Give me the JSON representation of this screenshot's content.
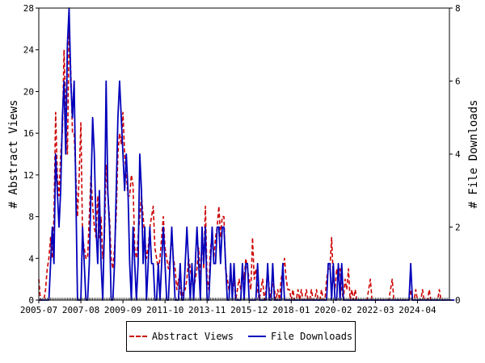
{
  "chart_data": {
    "type": "line",
    "x_tick_labels": [
      "2005-07",
      "2007-08",
      "2009-09",
      "2011-10",
      "2013-11",
      "2015-12",
      "2018-01",
      "2020-02",
      "2022-03",
      "2024-04"
    ],
    "y_left": {
      "label": "# Abstract Views",
      "ticks": [
        0,
        4,
        8,
        12,
        16,
        20,
        24,
        28
      ],
      "ylim": [
        0,
        28
      ]
    },
    "y_right": {
      "label": "# File Downloads",
      "ticks": [
        0,
        2,
        4,
        6,
        8
      ],
      "ylim": [
        0,
        8
      ]
    },
    "x_range": [
      "2005-07",
      "2025-11"
    ],
    "grid": false,
    "legend_position": "bottom",
    "series": [
      {
        "name": "Abstract Views",
        "axis": "left",
        "color": "#cc0000",
        "style": "dashed",
        "x_start": "2005-07",
        "step": "month",
        "values": [
          2,
          0,
          0,
          0,
          1,
          3,
          4,
          6,
          4,
          8,
          18,
          12,
          10,
          14,
          16,
          24,
          18,
          14,
          26,
          22,
          16,
          16,
          12,
          8,
          12,
          17,
          6,
          5,
          4,
          4,
          8,
          12,
          9,
          7,
          6,
          10,
          6,
          8,
          4,
          6,
          13,
          10,
          8,
          4,
          3,
          5,
          8,
          14,
          16,
          15,
          18,
          14,
          12,
          10,
          10,
          12,
          11,
          5,
          4,
          6,
          8,
          10,
          8,
          6,
          4,
          5,
          7,
          8,
          9,
          5,
          4,
          3,
          4,
          6,
          8,
          5,
          4,
          3,
          4,
          6,
          4,
          3,
          1,
          2,
          1,
          0,
          1,
          1,
          2,
          4,
          3,
          2,
          1,
          2,
          3,
          5,
          2,
          6,
          3,
          9,
          2,
          1,
          5,
          6,
          4,
          6,
          7,
          9,
          6,
          8,
          8,
          3,
          2,
          1,
          2,
          1,
          2,
          0,
          1,
          2,
          1,
          3,
          2,
          4,
          3,
          2,
          1,
          6,
          2,
          3,
          1,
          0,
          1,
          2,
          0,
          1,
          3,
          1,
          0,
          2,
          1,
          0,
          1,
          0,
          2,
          3,
          4,
          2,
          1,
          1,
          0,
          1,
          0,
          0,
          1,
          0,
          1,
          0,
          0,
          1,
          0,
          0,
          1,
          0,
          0,
          1,
          0,
          0,
          1,
          0,
          0,
          2,
          3,
          3,
          6,
          2,
          1,
          3,
          2,
          3,
          1,
          0,
          2,
          1,
          3,
          0,
          1,
          0,
          1,
          0,
          0,
          0,
          0,
          0,
          0,
          0,
          1,
          2,
          0,
          0,
          0,
          0,
          0,
          0,
          0,
          0,
          0,
          0,
          0,
          1,
          2,
          0,
          0,
          0,
          0,
          0,
          0,
          0,
          0,
          0,
          0,
          1,
          0,
          0,
          1,
          0,
          0,
          0,
          1,
          0,
          0,
          0,
          1,
          0,
          0,
          0,
          0,
          0,
          1,
          0,
          0,
          0
        ]
      },
      {
        "name": "File Downloads",
        "axis": "right",
        "color": "#0000bb",
        "style": "solid",
        "x_start": "2005-07",
        "step": "month",
        "values": [
          0,
          0,
          0,
          0,
          0,
          0,
          0,
          1,
          2,
          1,
          4,
          3,
          2,
          3,
          5,
          6,
          4,
          7,
          8,
          6,
          5,
          6,
          3,
          0,
          0,
          0,
          2,
          1,
          0,
          0,
          1,
          3,
          5,
          4,
          2,
          1,
          3,
          1,
          0,
          2,
          6,
          3,
          2,
          0,
          0,
          1,
          3,
          5,
          6,
          5,
          4,
          3,
          4,
          3,
          1,
          0,
          2,
          1,
          0,
          1,
          4,
          3,
          1,
          2,
          0,
          1,
          2,
          1,
          1,
          0,
          0,
          1,
          0,
          1,
          2,
          1,
          0,
          0,
          1,
          2,
          1,
          0,
          0,
          0,
          1,
          0,
          0,
          1,
          2,
          1,
          0,
          1,
          0,
          1,
          2,
          1,
          0,
          2,
          1,
          2,
          0,
          0,
          1,
          2,
          1,
          1,
          2,
          2,
          1,
          2,
          2,
          1,
          0,
          0,
          1,
          0,
          1,
          0,
          0,
          0,
          0,
          1,
          0,
          1,
          1,
          0,
          0,
          0,
          0,
          0,
          1,
          0,
          0,
          0,
          0,
          0,
          1,
          0,
          0,
          1,
          0,
          0,
          0,
          0,
          0,
          1,
          0,
          0,
          0,
          0,
          0,
          0,
          0,
          0,
          0,
          0,
          0,
          0,
          0,
          0,
          0,
          0,
          0,
          0,
          0,
          0,
          0,
          0,
          0,
          0,
          0,
          0,
          1,
          1,
          0,
          1,
          0,
          0,
          1,
          0,
          1,
          0,
          0,
          0,
          0,
          0,
          0,
          0,
          0,
          0,
          0,
          0,
          0,
          0,
          0,
          0,
          0,
          0,
          0,
          0,
          0,
          0,
          0,
          0,
          0,
          0,
          0,
          0,
          0,
          0,
          0,
          0,
          0,
          0,
          0,
          0,
          0,
          0,
          0,
          0,
          0,
          1,
          0,
          0,
          0,
          0,
          0,
          0,
          0,
          0,
          0,
          0,
          0,
          0,
          0,
          0,
          0,
          0,
          0,
          0,
          0,
          0,
          0,
          0,
          0,
          0,
          0,
          0
        ]
      }
    ]
  }
}
